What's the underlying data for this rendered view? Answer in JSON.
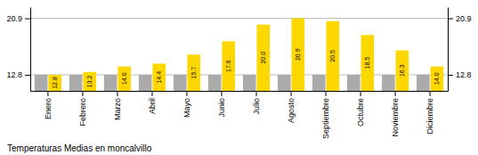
{
  "chart_data": {
    "type": "bar",
    "title": "Temperaturas Medias en moncalvillo",
    "categories": [
      "Enero",
      "Febrero",
      "Marzo",
      "Abril",
      "Mayo",
      "Junio",
      "Julio",
      "Agosto",
      "Septiembre",
      "Octubre",
      "Noviembre",
      "Diciembre"
    ],
    "series": [
      {
        "color": "#AAAAAA",
        "values": [
          12.8,
          12.8,
          12.8,
          12.8,
          12.8,
          12.8,
          12.8,
          12.8,
          12.8,
          12.8,
          12.8,
          12.8
        ]
      },
      {
        "color": "#FFD700",
        "values": [
          12.8,
          13.2,
          14.0,
          14.4,
          15.7,
          17.6,
          20.0,
          20.9,
          20.5,
          18.5,
          16.3,
          14.0
        ],
        "value_labels": [
          "12.8",
          "13.2",
          "14.0",
          "14.4",
          "15.7",
          "17.6",
          "20.0",
          "20.9",
          "20.5",
          "18.5",
          "16.3",
          "14.0"
        ],
        "data_labels": true
      }
    ],
    "ylim": [
      10.5,
      22.5
    ],
    "yticks": [
      12.8,
      20.9
    ],
    "y2lim": [
      10.5,
      22.5
    ],
    "y2ticks": [
      12.8,
      20.9
    ],
    "grid": true
  }
}
